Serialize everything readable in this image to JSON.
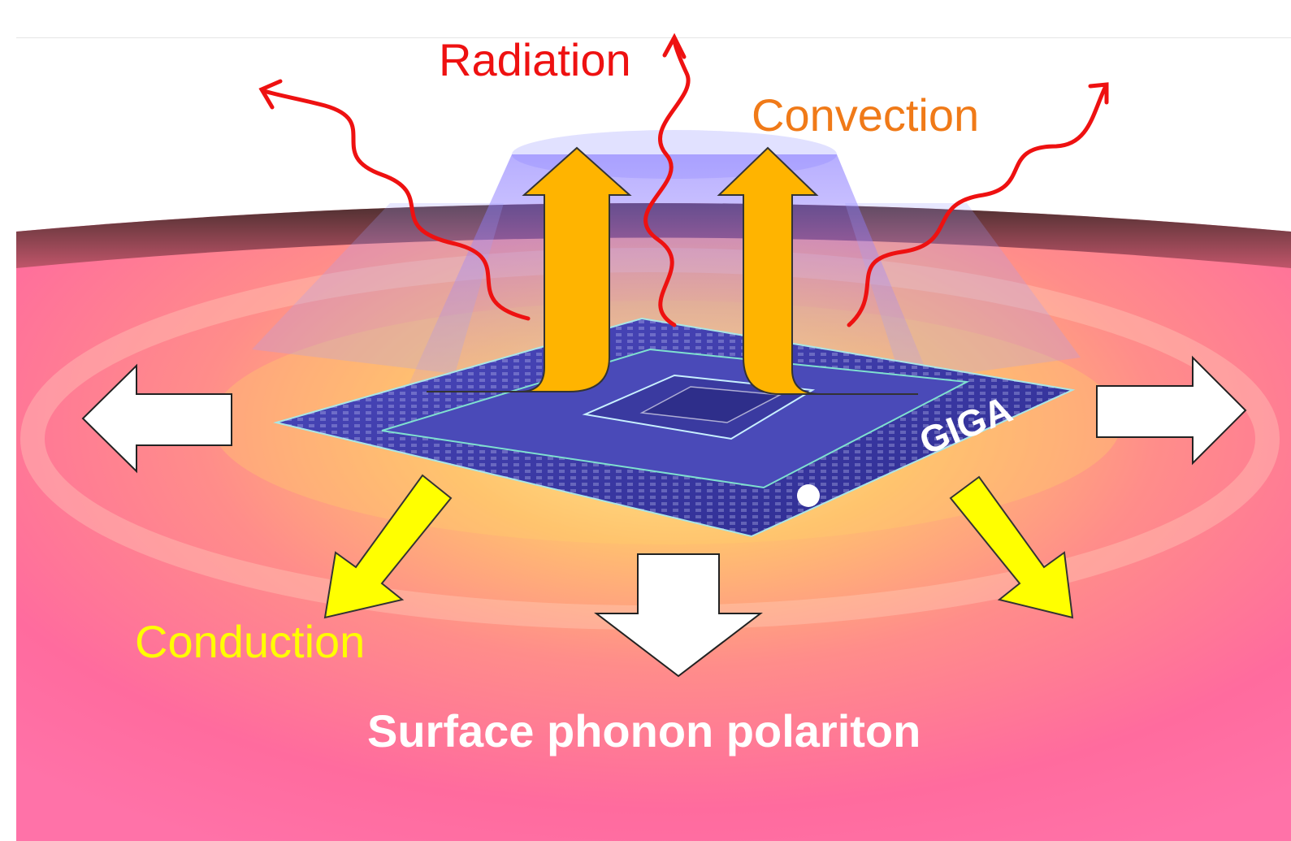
{
  "labels": {
    "radiation": "Radiation",
    "convection": "Convection",
    "conduction": "Conduction",
    "surface_phonon_polariton": "Surface phonon polariton",
    "chip_logo_text": "GIGA"
  },
  "colors": {
    "radiation": "#ee1111",
    "convection": "#f07a18",
    "conduction": "#ffff00",
    "surface_phonon_polariton": "#ffffff",
    "convection_arrow_fill": "#ffb400",
    "conduction_arrow_fill": "#ffff00",
    "spp_arrow_fill": "#ffffff",
    "chip_fill": "#3b39a8",
    "substrate_edge": "#5a3a3a"
  },
  "icons": {
    "radiation": "wavy-arrow-icon",
    "convection": "bent-up-arrow-icon",
    "conduction": "diagonal-arrow-icon",
    "surface_phonon_polariton": "block-arrow-icon"
  }
}
